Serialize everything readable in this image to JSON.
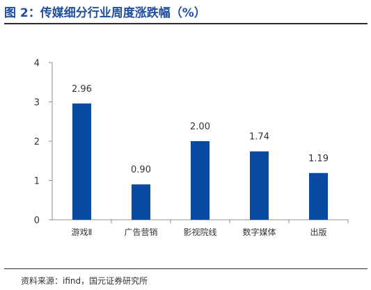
{
  "figure": {
    "title": "图 2：传媒细分行业周度涨跌幅（%）",
    "source": "资料来源：ifind，国元证券研究所"
  },
  "chart_data": {
    "type": "bar",
    "title": "传媒细分行业周度涨跌幅（%）",
    "xlabel": "",
    "ylabel": "",
    "categories": [
      "游戏Ⅱ",
      "广告营销",
      "影视院线",
      "数字媒体",
      "出版"
    ],
    "values": [
      2.96,
      0.9,
      2.0,
      1.74,
      1.19
    ],
    "data_labels": [
      "2.96",
      "0.90",
      "2.00",
      "1.74",
      "1.19"
    ],
    "ylim": [
      0,
      4
    ],
    "yticks": [
      0,
      1,
      2,
      3,
      4
    ],
    "grid": false,
    "legend": "none",
    "colors": {
      "bar": "#0b4aa2",
      "axis": "#8c8c8c",
      "title": "#1f4e9c",
      "text": "#333333"
    }
  }
}
